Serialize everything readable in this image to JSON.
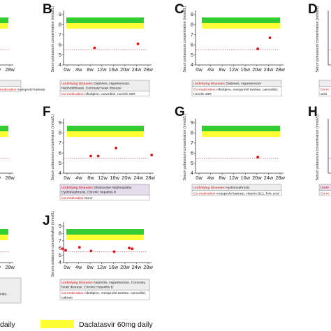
{
  "chart_data": [
    {
      "panel": "A",
      "type": "scatter",
      "x_ticks": [
        "24w",
        "28w"
      ],
      "y_ticks": [],
      "ylabel": "",
      "points": [
        {
          "x": 23,
          "y": 5.9
        }
      ],
      "underlying_diseases": "",
      "co_medication": "",
      "info_lines": [
        "",
        "Co-medication metoprolol tartrate"
      ]
    },
    {
      "panel": "B",
      "type": "scatter",
      "x_ticks": [
        "0w",
        "4w",
        "8w",
        "12w",
        "16w",
        "20w",
        "24w",
        "28w"
      ],
      "y_ticks": [
        "4",
        "5",
        "6",
        "7",
        "8",
        "9"
      ],
      "ylabel": "Serum potassium concentration (mmol/L)",
      "points": [
        {
          "x": 9.5,
          "y": 5.7
        },
        {
          "x": 24.5,
          "y": 6.1
        }
      ],
      "underlying_diseases": "Diabetes, Hypertension, Nephrolithiasis, Coronary heart disease",
      "co_medication": "nifedipine, carvedilol, novolin 30R",
      "info_lines": [
        "Underlying Diseases Diabetes, Hypertension,",
        "Nephrolithiasis, Coronary heart disease",
        "Co-medication nifedipine, carvedilol, novolin 30R"
      ]
    },
    {
      "panel": "C",
      "type": "scatter",
      "x_ticks": [
        "0w",
        "4w",
        "8w",
        "12w",
        "16w",
        "20w",
        "24w",
        "28w"
      ],
      "y_ticks": [
        "4",
        "5",
        "6",
        "7",
        "8",
        "9"
      ],
      "ylabel": "Serum potassium concentration (mmol/L)",
      "points": [
        {
          "x": 20.3,
          "y": 5.6
        },
        {
          "x": 24.5,
          "y": 6.7
        }
      ],
      "underlying_diseases": "Diabetes, Hypertension",
      "co_medication": "nifedipine, metoprolol tartrate, carvedilol, novolin 30R",
      "info_lines": [
        "Underlying Diseases Diabetes, Hypertension",
        "Co-medication nifedipine, metoprolol tartrate, carvedilol,",
        "novolin 30R"
      ]
    },
    {
      "panel": "D",
      "type": "scatter",
      "x_ticks": [],
      "y_ticks": [],
      "ylabel": "Serum potassium concentration (mmol/L)",
      "points": [],
      "underlying_diseases": "",
      "co_medication": "",
      "info_lines": [
        "",
        "Co-m",
        "anlo"
      ]
    },
    {
      "panel": "E",
      "type": "scatter",
      "x_ticks": [
        "24w",
        "28w"
      ],
      "y_ticks": [],
      "ylabel": "",
      "points": [],
      "underlying_diseases": "",
      "co_medication": "",
      "info_lines": []
    },
    {
      "panel": "F",
      "type": "scatter",
      "x_ticks": [
        "0w",
        "4w",
        "8w",
        "12w",
        "16w",
        "20w",
        "24w",
        "28w"
      ],
      "y_ticks": [
        "4",
        "5",
        "6",
        "7",
        "8",
        "9"
      ],
      "ylabel": "Serum potassium concentration (mmol/L)",
      "points": [
        {
          "x": 8,
          "y": 5.7
        },
        {
          "x": 10.5,
          "y": 5.7
        },
        {
          "x": 16.5,
          "y": 6.5
        },
        {
          "x": 28.5,
          "y": 5.8
        }
      ],
      "underlying_diseases": "Obstructive Nephropathy Hydronephrosis, Chronic hepatitis B",
      "co_medication": "None",
      "info_lines": [
        "Underlying Diseases Obstructive Nephropathy",
        "Hydronephrosis, Chronic hepatitis B",
        "Co-medication None"
      ]
    },
    {
      "panel": "G",
      "type": "scatter",
      "x_ticks": [
        "0w",
        "4w",
        "8w",
        "12w",
        "16w",
        "20w",
        "24w",
        "28w"
      ],
      "y_ticks": [
        "4",
        "5",
        "6",
        "7",
        "8",
        "9"
      ],
      "ylabel": "Serum potassium concentration (mmol/L)",
      "points": [
        {
          "x": 20.3,
          "y": 5.6
        }
      ],
      "underlying_diseases": "Hydronephrosis",
      "co_medication": "metoprolol tartrate, vitamin B12, folic acid",
      "info_lines": [
        "Underlying Diseases Hydronephrosis",
        "Co-medication metoprolol tartrate, vitamin B12, folic acid"
      ]
    },
    {
      "panel": "H",
      "type": "scatter",
      "x_ticks": [],
      "y_ticks": [],
      "ylabel": "Serum potassium concentration (mmol/L)",
      "points": [],
      "underlying_diseases": "",
      "co_medication": "",
      "info_lines": [
        "Unde",
        "Co-m"
      ]
    },
    {
      "panel": "I",
      "type": "scatter",
      "x_ticks": [
        "24w",
        "28w"
      ],
      "y_ticks": [],
      "ylabel": "",
      "points": [
        {
          "x": 24.5,
          "y": 6.0
        }
      ],
      "underlying_diseases": "",
      "co_medication": "",
      "info_lines": [
        "",
        "",
        "chloride-",
        ""
      ]
    },
    {
      "panel": "J",
      "type": "scatter",
      "x_ticks": [
        "0w",
        "4w",
        "8w",
        "12w",
        "16w",
        "20w",
        "24w",
        "28w"
      ],
      "y_ticks": [
        "4",
        "5",
        "6",
        "7",
        "8",
        "9"
      ],
      "ylabel": "Serum potassium concentration (mmol/L)",
      "points": [
        {
          "x": -1.5,
          "y": 5.9
        },
        {
          "x": -0.5,
          "y": 5.7
        },
        {
          "x": 4.3,
          "y": 6.1
        },
        {
          "x": 8.3,
          "y": 5.6
        },
        {
          "x": 16.3,
          "y": 5.5
        },
        {
          "x": 21.5,
          "y": 6.0
        },
        {
          "x": 22.5,
          "y": 5.9
        }
      ],
      "underlying_diseases": "Nephritis, Hypertension, Coronary heart disease, Chronic Hepatitis B",
      "co_medication": "nifedipine, metoprolol tartrate, carvedilol, caltrate",
      "info_lines": [
        "Underlying Diseases Nephritis, Hypertension, Coronary",
        "heart disease, Chronic Hepatitis B",
        "Co-medication nifedipine, metoprolol tartrate, carvedilol,",
        "caltrate"
      ]
    }
  ],
  "legend": [
    {
      "label": "daily",
      "color": "#33cc33"
    },
    {
      "label": "Daclatasvir 60mg daily",
      "color": "#ffff33"
    }
  ],
  "labels": {
    "underlying_key": "Underlying Diseases",
    "comed_key": "Co-medication"
  },
  "colors": {
    "green_band": "#33cc33",
    "yellow_band": "#ffff33",
    "point": "#dd1111",
    "reference_line": "#aa4444",
    "info_box": "#eeeeee",
    "info_box_highlight": "#e5dcec"
  }
}
